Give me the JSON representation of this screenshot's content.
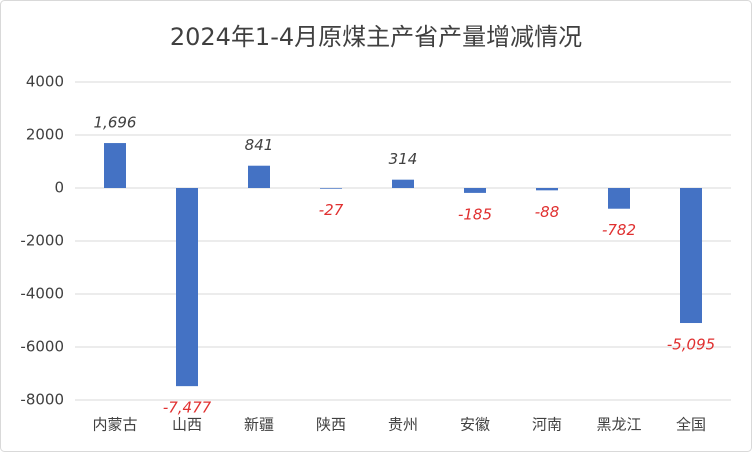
{
  "chart_data": {
    "type": "bar",
    "title": "2024年1-4月原煤主产省产量增减情况",
    "categories": [
      "内蒙古",
      "山西",
      "新疆",
      "陕西",
      "贵州",
      "安徽",
      "河南",
      "黑龙江",
      "全国"
    ],
    "values": [
      1696,
      -7477,
      841,
      -27,
      314,
      -185,
      -88,
      -782,
      -5095
    ],
    "value_labels": [
      "1,696",
      "-7,477",
      "841",
      "-27",
      "314",
      "-185",
      "-88",
      "-782",
      "-5,095"
    ],
    "color": "#4472c4",
    "label_color": "#404040",
    "negative_label_color": "#e03030",
    "ylim": [
      -8000,
      4000
    ],
    "yticks": [
      -8000,
      -6000,
      -4000,
      -2000,
      0,
      2000,
      4000
    ],
    "grid": true
  }
}
